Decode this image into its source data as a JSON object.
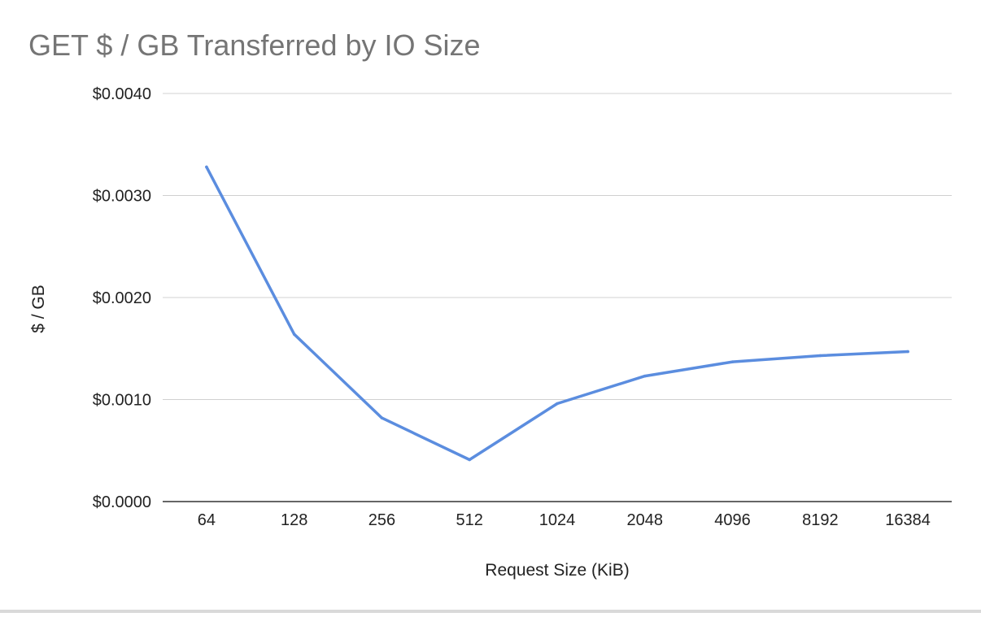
{
  "chart_data": {
    "type": "line",
    "title": "GET $ / GB Transferred by IO Size",
    "xlabel": "Request Size (KiB)",
    "ylabel": "$ / GB",
    "categories": [
      "64",
      "128",
      "256",
      "512",
      "1024",
      "2048",
      "4096",
      "8192",
      "16384"
    ],
    "series": [
      {
        "values": [
          0.00328,
          0.00164,
          0.00082,
          0.00041,
          0.00096,
          0.00123,
          0.00137,
          0.00143,
          0.00147
        ]
      }
    ],
    "ylim": [
      0,
      0.004
    ],
    "yticks": [
      0,
      0.001,
      0.002,
      0.003,
      0.004
    ],
    "ytick_labels": [
      "$0.0000",
      "$0.0010",
      "$0.0020",
      "$0.0030",
      "$0.0040"
    ],
    "grid": "horizontal",
    "legend": "none",
    "colors": {
      "line": "#5b8ddf",
      "grid": "#d0d0d0",
      "axis": "#333333",
      "title": "#757575",
      "text": "#222222"
    }
  }
}
